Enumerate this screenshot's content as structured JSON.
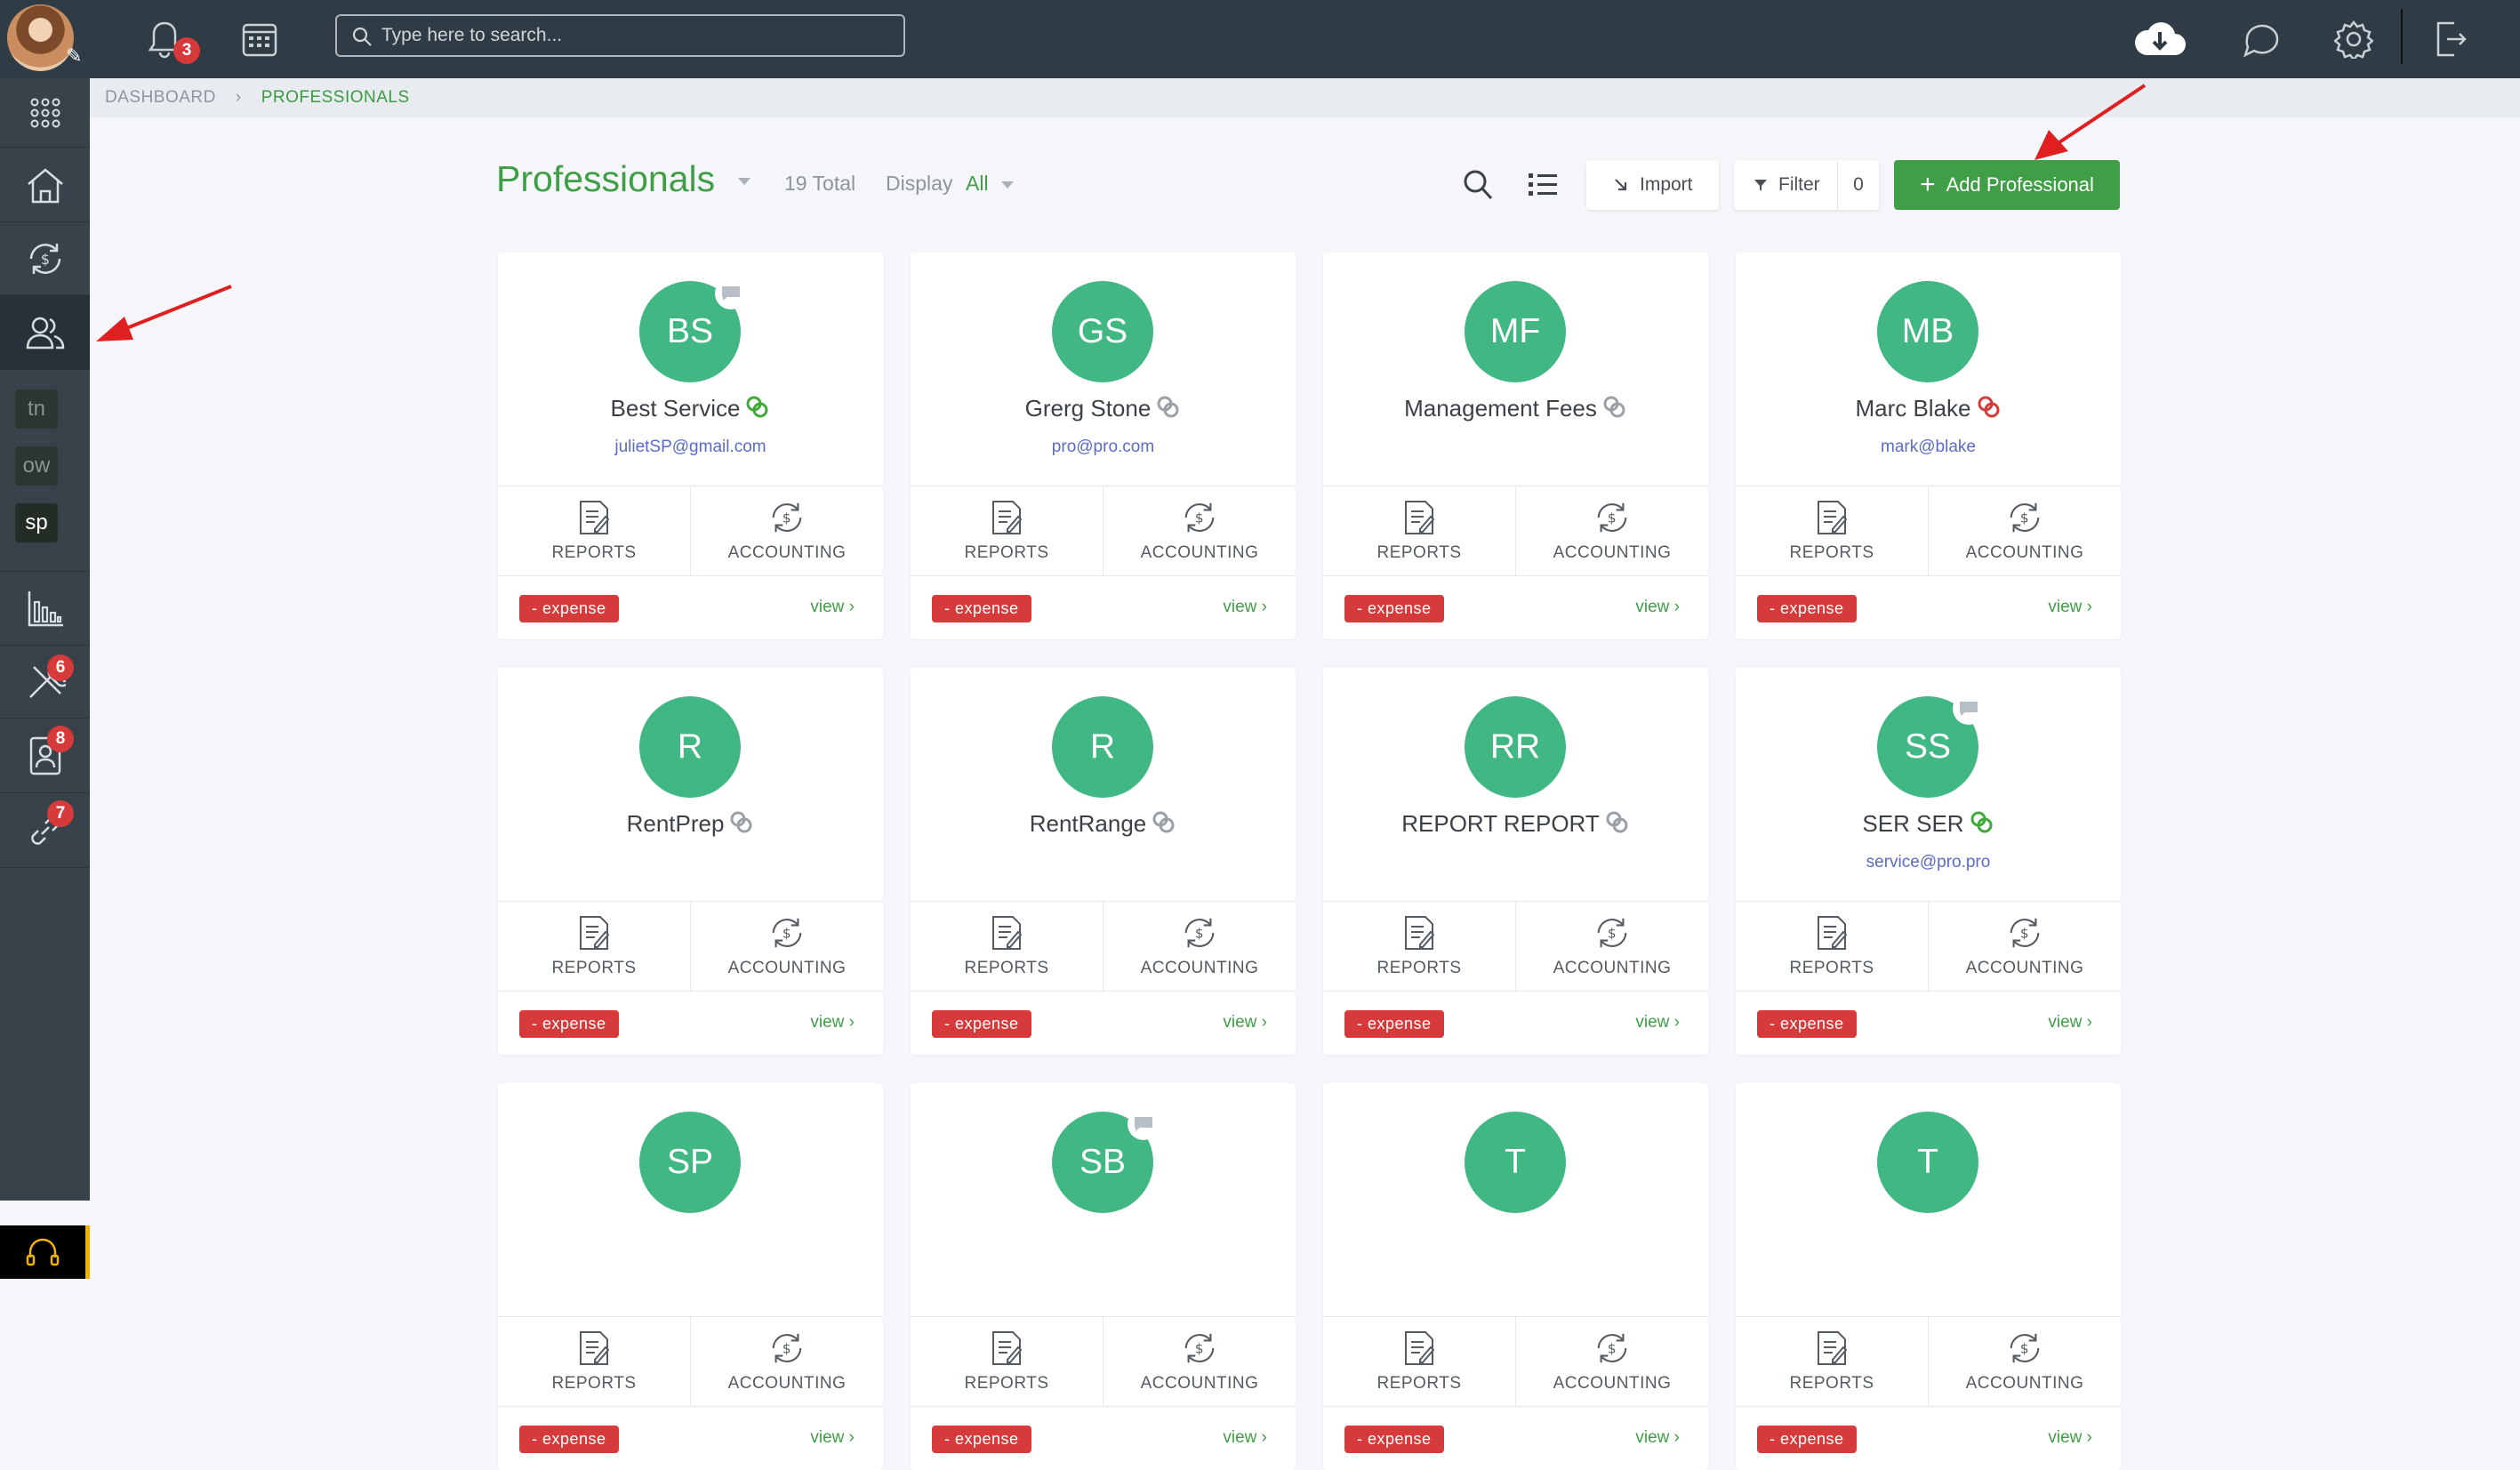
{
  "topbar": {
    "notification_count": "3",
    "search_placeholder": "Type here to search..."
  },
  "sidebar": {
    "letters": [
      "tn",
      "ow",
      "sp"
    ],
    "badges": {
      "tools": "6",
      "contacts": "8",
      "links": "7"
    }
  },
  "breadcrumb": {
    "root": "DASHBOARD",
    "current": "PROFESSIONALS"
  },
  "header": {
    "title": "Professionals",
    "total": "19 Total",
    "display_label": "Display",
    "display_value": "All",
    "import_label": "Import",
    "filter_label": "Filter",
    "filter_count": "0",
    "add_label": "Add Professional"
  },
  "card_labels": {
    "reports": "REPORTS",
    "accounting": "ACCOUNTING",
    "expense": "- expense",
    "view": "view"
  },
  "professionals": [
    {
      "initials": "BS",
      "name": "Best Service",
      "email": "julietSP@gmail.com",
      "link_status": "green",
      "chat": true
    },
    {
      "initials": "GS",
      "name": "Grerg Stone",
      "email": "pro@pro.com",
      "link_status": "gray",
      "chat": false
    },
    {
      "initials": "MF",
      "name": "Management Fees",
      "email": "",
      "link_status": "gray",
      "chat": false
    },
    {
      "initials": "MB",
      "name": "Marc Blake",
      "email": "mark@blake",
      "link_status": "red",
      "chat": false
    },
    {
      "initials": "R",
      "name": "RentPrep",
      "email": "",
      "link_status": "gray",
      "chat": false
    },
    {
      "initials": "R",
      "name": "RentRange",
      "email": "",
      "link_status": "gray",
      "chat": false
    },
    {
      "initials": "RR",
      "name": "REPORT REPORT",
      "email": "",
      "link_status": "gray",
      "chat": false
    },
    {
      "initials": "SS",
      "name": "SER SER",
      "email": "service@pro.pro",
      "link_status": "green",
      "chat": true
    },
    {
      "initials": "SP",
      "name": "",
      "email": "",
      "link_status": "",
      "chat": false
    },
    {
      "initials": "SB",
      "name": "",
      "email": "",
      "link_status": "",
      "chat": true
    },
    {
      "initials": "T",
      "name": "",
      "email": "",
      "link_status": "",
      "chat": false
    },
    {
      "initials": "T",
      "name": "",
      "email": "",
      "link_status": "",
      "chat": false
    }
  ],
  "colors": {
    "accent": "#3f9e46",
    "avatar": "#41b883",
    "danger": "#d63a3a",
    "topbar": "#2f3b45"
  }
}
